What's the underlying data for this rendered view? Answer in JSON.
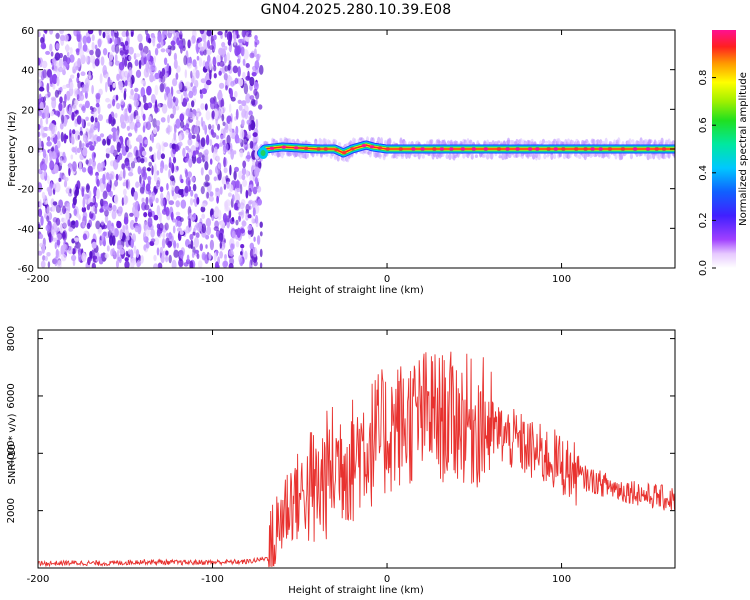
{
  "title": "GN04.2025.280.10.39.E08",
  "colors": {
    "noise": "#6a1fd8",
    "trace_core": "#ff2222",
    "snr_line": "#e8322f",
    "frame": "#000000"
  },
  "chart_data": [
    {
      "type": "heatmap",
      "name": "spectrogram",
      "xlabel": "Height of straight line (km)",
      "ylabel": "Frequency (Hz)",
      "xlim": [
        -200,
        165
      ],
      "ylim": [
        -60,
        60
      ],
      "xticks": [
        -200,
        -100,
        0,
        100
      ],
      "yticks": [
        -60,
        -40,
        -20,
        0,
        20,
        40,
        60
      ],
      "noise_region_x": [
        -200,
        -72
      ],
      "signal_start_x": -72,
      "signal_center_freq": 0,
      "signal_path": [
        [
          -72,
          -2
        ],
        [
          -70,
          0
        ],
        [
          -60,
          1
        ],
        [
          -40,
          0
        ],
        [
          -30,
          0
        ],
        [
          -25,
          -2
        ],
        [
          -20,
          0
        ],
        [
          -12,
          2
        ],
        [
          -8,
          1
        ],
        [
          0,
          0
        ],
        [
          165,
          0
        ]
      ],
      "colorbar": {
        "label": "Normalized spectral amplitude",
        "ticks": [
          0.0,
          0.2,
          0.4,
          0.6,
          0.8
        ],
        "tick_labels": [
          "0.0",
          "0.2",
          "0.4",
          "0.6",
          "0.8"
        ],
        "range": [
          0,
          1
        ]
      }
    },
    {
      "type": "line",
      "name": "snr",
      "xlabel": "Height of straight line (km)",
      "ylabel": "SNR (10 * v/v)",
      "xlim": [
        -200,
        165
      ],
      "ylim": [
        0,
        8300
      ],
      "xticks": [
        -200,
        -100,
        0,
        100
      ],
      "yticks": [
        2000,
        4000,
        6000,
        8000
      ],
      "series": [
        {
          "color": "#e8322f",
          "points": [
            [
              -200,
              150
            ],
            [
              -180,
              180
            ],
            [
              -160,
              160
            ],
            [
              -140,
              220
            ],
            [
              -120,
              190
            ],
            [
              -100,
              200
            ],
            [
              -80,
              220
            ],
            [
              -68,
              350
            ],
            [
              -64,
              1000
            ],
            [
              -60,
              1900
            ],
            [
              -55,
              2400
            ],
            [
              -50,
              2500
            ],
            [
              -45,
              2800
            ],
            [
              -40,
              2600
            ],
            [
              -35,
              3200
            ],
            [
              -30,
              3600
            ],
            [
              -25,
              3800
            ],
            [
              -20,
              3700
            ],
            [
              -15,
              4300
            ],
            [
              -10,
              4300
            ],
            [
              -5,
              4600
            ],
            [
              0,
              4700
            ],
            [
              5,
              5000
            ],
            [
              10,
              5000
            ],
            [
              15,
              5200
            ],
            [
              20,
              5300
            ],
            [
              25,
              5500
            ],
            [
              30,
              5200
            ],
            [
              35,
              5300
            ],
            [
              40,
              5200
            ],
            [
              45,
              5200
            ],
            [
              50,
              5000
            ],
            [
              55,
              5100
            ],
            [
              60,
              4800
            ],
            [
              65,
              4700
            ],
            [
              70,
              4500
            ],
            [
              75,
              4400
            ],
            [
              80,
              4200
            ],
            [
              85,
              4000
            ],
            [
              90,
              3900
            ],
            [
              95,
              3800
            ],
            [
              100,
              3600
            ],
            [
              105,
              3400
            ],
            [
              110,
              3200
            ],
            [
              115,
              3100
            ],
            [
              120,
              3000
            ],
            [
              125,
              2900
            ],
            [
              130,
              2800
            ],
            [
              135,
              2700
            ],
            [
              140,
              2700
            ],
            [
              145,
              2600
            ],
            [
              150,
              2500
            ],
            [
              155,
              2500
            ],
            [
              160,
              2400
            ],
            [
              165,
              2400
            ]
          ]
        }
      ]
    }
  ]
}
